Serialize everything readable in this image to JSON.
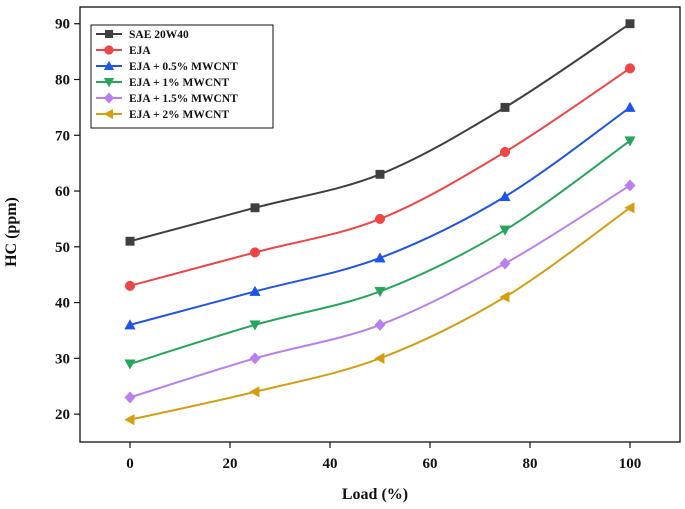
{
  "chart_data": {
    "type": "line",
    "title": "",
    "xlabel": "Load (%)",
    "ylabel": "HC (ppm)",
    "xlim": [
      -10,
      110
    ],
    "ylim": [
      15,
      93
    ],
    "xticks": [
      0,
      20,
      40,
      60,
      80,
      100
    ],
    "yticks": [
      20,
      30,
      40,
      50,
      60,
      70,
      80,
      90
    ],
    "grid": false,
    "legend_position": "top-left",
    "x": [
      0,
      25,
      50,
      75,
      100
    ],
    "series": [
      {
        "name": "SAE 20W40",
        "color": "#3f3f3f",
        "marker": "square",
        "values": [
          51,
          57,
          63,
          75,
          90
        ]
      },
      {
        "name": "EJA",
        "color": "#f04545",
        "marker": "circle",
        "values": [
          43,
          49,
          55,
          67,
          82
        ]
      },
      {
        "name": "EJA + 0.5% MWCNT",
        "color": "#1f55e6",
        "marker": "triangle-up",
        "values": [
          36,
          42,
          48,
          59,
          75
        ]
      },
      {
        "name": "EJA + 1% MWCNT",
        "color": "#26a65b",
        "marker": "triangle-down",
        "values": [
          29,
          36,
          42,
          53,
          69
        ]
      },
      {
        "name": "EJA + 1.5% MWCNT",
        "color": "#b97ff0",
        "marker": "diamond",
        "values": [
          23,
          30,
          36,
          47,
          61
        ]
      },
      {
        "name": "EJA + 2% MWCNT",
        "color": "#d39e10",
        "marker": "triangle-left",
        "values": [
          19,
          24,
          30,
          41,
          57
        ]
      }
    ]
  }
}
